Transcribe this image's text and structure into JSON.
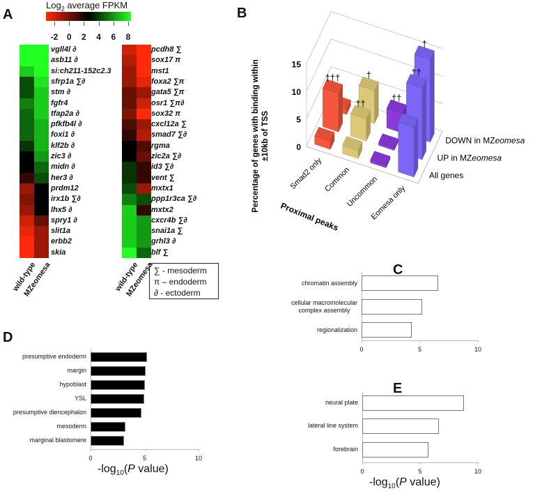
{
  "panels": {
    "A": "A",
    "B": "B",
    "C": "C",
    "D": "D",
    "E": "E"
  },
  "chart_data": [
    {
      "panel": "A",
      "type": "heatmap",
      "colorbar": {
        "title_main": "Log",
        "title_sub": "2",
        "title_rest": " average FPKM",
        "ticks": [
          "-2",
          "0",
          "2",
          "4",
          "6",
          "8"
        ],
        "range": [
          -2,
          8
        ],
        "low_color": "#ff2a0a",
        "mid_color": "#000000",
        "high_color": "#22ff22"
      },
      "columns": [
        "wild-type",
        "MZeomesa"
      ],
      "left": {
        "genes": [
          "vgll4l ∂",
          "asb11 ∂",
          "si:ch211-152c2.3",
          "sfrp1a ∑∂",
          "stm ∂",
          "fgfr4",
          "tfap2a ∂",
          "pfkfb4l ∂",
          "foxi1 ∂",
          "klf2b ∂",
          "zic3 ∂",
          "midn ∂",
          "her3 ∂",
          "prdm12",
          "irx1b ∑∂",
          "lhx5 ∂",
          "spry1 ∂",
          "slit1a",
          "erbb2",
          "skia"
        ],
        "values": [
          [
            8,
            8
          ],
          [
            8,
            8.5
          ],
          [
            7,
            8
          ],
          [
            4.5,
            7.5
          ],
          [
            4.5,
            7
          ],
          [
            5.5,
            7
          ],
          [
            5,
            7
          ],
          [
            5,
            6.5
          ],
          [
            5,
            6.5
          ],
          [
            4,
            6.5
          ],
          [
            3,
            6
          ],
          [
            3,
            5
          ],
          [
            2,
            4.5
          ],
          [
            0,
            3
          ],
          [
            0.5,
            3
          ],
          [
            0,
            3
          ],
          [
            -1,
            1
          ],
          [
            -1.5,
            0
          ],
          [
            -2,
            0
          ],
          [
            -2,
            0
          ]
        ]
      },
      "right": {
        "genes": [
          "pcdh8 ∑",
          "sox17 π",
          "mst1",
          "foxa2 ∑π",
          "gata5 ∑π",
          "osr1 ∑π∂",
          "sox32 π",
          "cxcl12a ∑",
          "smad7 ∑∂",
          "rgma",
          "zic2a ∑∂",
          "id3 ∑∂",
          "vent ∑",
          "mxtx1",
          "ppp1r3ca ∑∂",
          "mxtx2",
          "cxcr4b ∑∂",
          "snai1a ∑",
          "grhl3 ∂",
          "blf ∑"
        ],
        "values": [
          [
            -1,
            -2
          ],
          [
            -0.5,
            -2
          ],
          [
            0,
            -2
          ],
          [
            0,
            -1.5
          ],
          [
            1,
            0
          ],
          [
            1,
            -1
          ],
          [
            0.5,
            -2
          ],
          [
            1.5,
            0
          ],
          [
            2,
            -0.5
          ],
          [
            3,
            1.5
          ],
          [
            3,
            1
          ],
          [
            4,
            2
          ],
          [
            4,
            2
          ],
          [
            4.5,
            0
          ],
          [
            5.5,
            4.5
          ],
          [
            7,
            2
          ],
          [
            7,
            6
          ],
          [
            7,
            6
          ],
          [
            7,
            6
          ],
          [
            9,
            5
          ]
        ]
      },
      "legend": [
        "∑ - mesoderm",
        "π – endoderm",
        "∂ - ectoderm"
      ]
    },
    {
      "panel": "B",
      "type": "bar",
      "subtype": "3d",
      "ylabel_line1": "Percentage of genes with binding within",
      "ylabel_line2": "±10kb of TSS",
      "xlabel": "Proximal peaks",
      "categories": [
        "Smad2 only",
        "Common",
        "Uncommon",
        "Eomesa only"
      ],
      "ylim": [
        0,
        15
      ],
      "yticks": [
        "0",
        "5",
        "10",
        "15"
      ],
      "category_colors": [
        "#f4573c",
        "#dcc877",
        "#8a3ad8",
        "#7b66f6"
      ],
      "series": [
        {
          "name": "All genes",
          "name_plain": "All genes",
          "values": [
            1.5,
            1.5,
            0.5,
            9
          ],
          "marks": [
            "",
            "",
            "",
            ""
          ]
        },
        {
          "name": "UP in MZeomesa",
          "name_plain": "UP in MZ",
          "name_italic": "eomesa",
          "values": [
            7,
            4,
            0.5,
            13
          ],
          "marks": [
            "†††",
            "††",
            "",
            "††"
          ]
        },
        {
          "name": "DOWN in MZeomesa",
          "name_plain": "DOWN in MZ",
          "name_italic": "eomesa",
          "values": [
            1,
            6,
            3.5,
            15
          ],
          "marks": [
            "",
            "†",
            "††",
            "†"
          ]
        }
      ]
    },
    {
      "panel": "C",
      "type": "bar",
      "orientation": "horizontal",
      "categories": [
        "chromatin assembly",
        "cellular macromolecular complex assembly",
        "regionalization"
      ],
      "category_lines": [
        [
          "chromatin assembly"
        ],
        [
          "cellular macromolecular",
          "complex assembly"
        ],
        [
          "regionalization"
        ]
      ],
      "values": [
        6.6,
        5.2,
        4.3
      ],
      "xlim": [
        0,
        10
      ],
      "xticks": [
        "0",
        "5",
        "10"
      ],
      "bar_fill": "#ffffff",
      "xlabel": ""
    },
    {
      "panel": "D",
      "type": "bar",
      "orientation": "horizontal",
      "categories": [
        "presumptive endoderm",
        "margin",
        "hypoblast",
        "YSL",
        "presumptive diencephalon",
        "mesoderm",
        "marginal blastomere"
      ],
      "values": [
        5.2,
        5.1,
        5.0,
        4.95,
        4.7,
        3.2,
        3.1
      ],
      "xlim": [
        0,
        10
      ],
      "xticks": [
        "0",
        "5",
        "10"
      ],
      "bar_fill": "#000000",
      "xlabel_pre": "-log",
      "xlabel_sub": "10",
      "xlabel_open": "(",
      "xlabel_italic": "P",
      "xlabel_post": " value)"
    },
    {
      "panel": "E",
      "type": "bar",
      "orientation": "horizontal",
      "categories": [
        "neural plate",
        "lateral line system",
        "forebrain"
      ],
      "values": [
        8.8,
        6.6,
        5.7
      ],
      "xlim": [
        0,
        10
      ],
      "xticks": [
        "0",
        "5",
        "10"
      ],
      "bar_fill": "#ffffff",
      "xlabel_pre": "-log",
      "xlabel_sub": "10",
      "xlabel_open": "(",
      "xlabel_italic": "P",
      "xlabel_post": " value)"
    }
  ]
}
